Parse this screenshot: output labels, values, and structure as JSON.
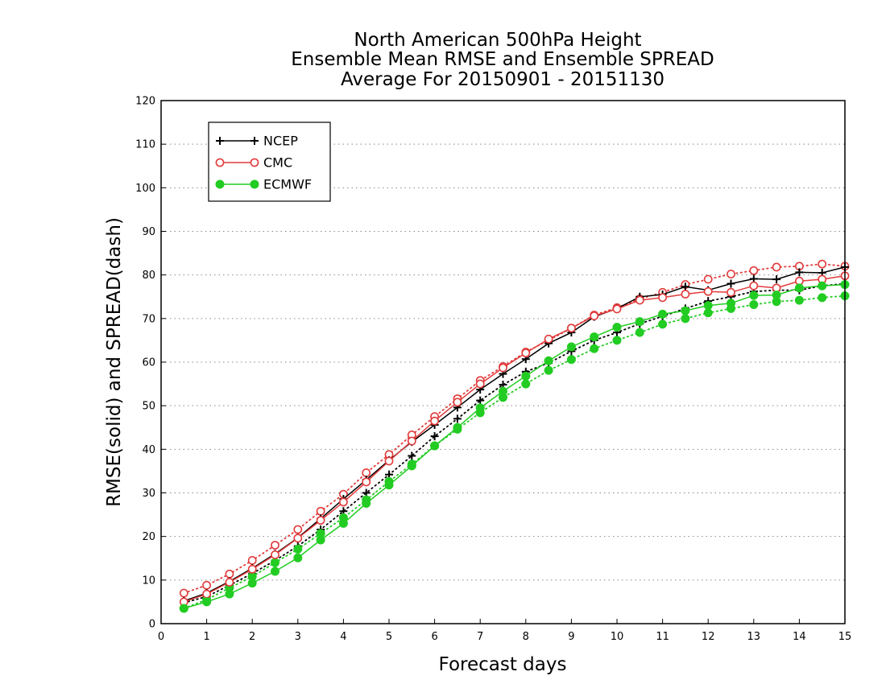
{
  "chart_data": {
    "type": "line",
    "title_lines": [
      "North American 500hPa Height",
      "Ensemble Mean RMSE and Ensemble SPREAD",
      "Average For 20150901 - 20151130"
    ],
    "xlabel": "Forecast days",
    "ylabel": "RMSE(solid) and SPREAD(dash)",
    "xlim": [
      0,
      15
    ],
    "ylim": [
      0,
      120
    ],
    "xticks": [
      0,
      1,
      2,
      3,
      4,
      5,
      6,
      7,
      8,
      9,
      10,
      11,
      12,
      13,
      14,
      15
    ],
    "yticks": [
      0,
      10,
      20,
      30,
      40,
      50,
      60,
      70,
      80,
      90,
      100,
      110,
      120
    ],
    "grid": "horizontal dotted",
    "legend_position": "top-left",
    "x": [
      0.5,
      1,
      1.5,
      2,
      2.5,
      3,
      3.5,
      4,
      4.5,
      5,
      5.5,
      6,
      6.5,
      7,
      7.5,
      8,
      8.5,
      9,
      9.5,
      10,
      10.5,
      11,
      11.5,
      12,
      12.5,
      13,
      13.5,
      14,
      14.5,
      15
    ],
    "series": [
      {
        "name": "NCEP",
        "metric": "RMSE",
        "color": "#000000",
        "marker": "plus",
        "line_style": "solid",
        "values": [
          5.2,
          7.0,
          9.7,
          12.7,
          16.0,
          19.7,
          24.1,
          28.6,
          33.0,
          37.5,
          41.7,
          45.6,
          49.6,
          53.7,
          57.3,
          60.7,
          64.3,
          66.8,
          70.4,
          72.3,
          75.0,
          75.5,
          77.3,
          76.5,
          78.0,
          79.1,
          79.0,
          80.6,
          80.5,
          81.8
        ]
      },
      {
        "name": "NCEP",
        "metric": "SPREAD",
        "color": "#000000",
        "marker": "plus",
        "line_style": "dotted",
        "values": [
          4.8,
          6.2,
          8.8,
          11.5,
          14.5,
          17.8,
          21.6,
          25.8,
          30.0,
          34.2,
          38.5,
          43.0,
          47.0,
          51.2,
          54.8,
          57.8,
          59.8,
          62.5,
          65.0,
          66.8,
          68.8,
          70.5,
          72.3,
          74.0,
          75.0,
          76.2,
          76.5,
          76.5,
          77.5,
          78.0
        ]
      },
      {
        "name": "CMC",
        "metric": "RMSE",
        "color": "#e23b3b",
        "marker": "open-circle",
        "line_style": "solid",
        "values": [
          5.0,
          6.8,
          9.5,
          12.5,
          15.8,
          19.6,
          23.7,
          27.9,
          32.5,
          37.3,
          41.9,
          46.5,
          50.8,
          55.0,
          58.7,
          62.1,
          65.3,
          67.8,
          70.6,
          72.2,
          74.2,
          74.8,
          75.6,
          76.2,
          76.0,
          77.5,
          77.0,
          78.6,
          79.0,
          79.8
        ]
      },
      {
        "name": "CMC",
        "metric": "SPREAD",
        "color": "#e23b3b",
        "marker": "open-circle",
        "line_style": "dotted",
        "values": [
          7.0,
          8.8,
          11.4,
          14.5,
          18.0,
          21.6,
          25.8,
          29.7,
          34.6,
          38.8,
          43.3,
          47.5,
          51.6,
          55.8,
          59.0,
          62.3,
          65.0,
          67.8,
          70.8,
          72.5,
          74.5,
          76.0,
          77.8,
          79.0,
          80.2,
          81.0,
          81.8,
          82.0,
          82.5,
          82.0
        ]
      },
      {
        "name": "ECMWF",
        "metric": "RMSE",
        "color": "#22cc22",
        "marker": "filled-circle",
        "line_style": "solid",
        "values": [
          3.5,
          5.0,
          6.8,
          9.3,
          12.0,
          15.1,
          19.2,
          23.0,
          27.6,
          31.8,
          36.2,
          40.8,
          45.0,
          49.5,
          53.3,
          56.8,
          60.3,
          63.5,
          65.8,
          68.0,
          69.3,
          71.0,
          71.8,
          73.0,
          73.5,
          75.3,
          75.4,
          77.0,
          77.5,
          77.8
        ]
      },
      {
        "name": "ECMWF",
        "metric": "SPREAD",
        "color": "#22cc22",
        "marker": "filled-circle",
        "line_style": "dotted",
        "values": [
          3.5,
          5.5,
          8.2,
          10.8,
          14.0,
          17.1,
          20.7,
          24.3,
          28.4,
          32.6,
          36.6,
          40.8,
          44.6,
          48.4,
          51.9,
          55.0,
          58.1,
          60.6,
          63.1,
          65.0,
          66.8,
          68.7,
          70.0,
          71.3,
          72.3,
          73.2,
          73.9,
          74.2,
          74.8,
          75.2
        ]
      }
    ],
    "legend": [
      {
        "label": "NCEP",
        "color": "#000000",
        "marker": "plus"
      },
      {
        "label": "CMC",
        "color": "#e23b3b",
        "marker": "open-circle"
      },
      {
        "label": "ECMWF",
        "color": "#22cc22",
        "marker": "filled-circle"
      }
    ]
  }
}
